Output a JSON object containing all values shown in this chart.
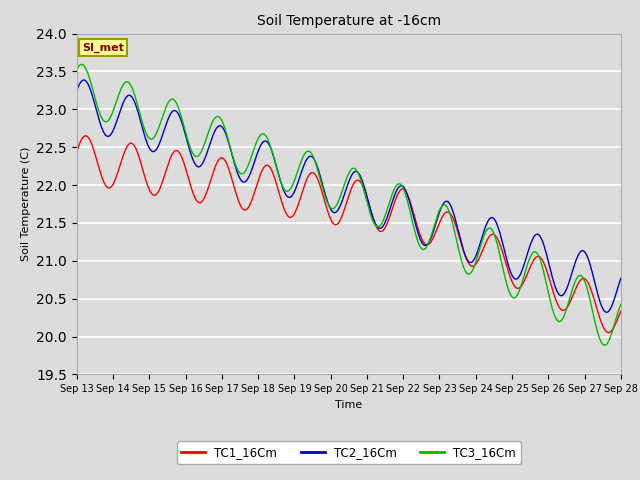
{
  "title": "Soil Temperature at -16cm",
  "xlabel": "Time",
  "ylabel": "Soil Temperature (C)",
  "ylim": [
    19.5,
    24.0
  ],
  "yticks": [
    19.5,
    20.0,
    20.5,
    21.0,
    21.5,
    22.0,
    22.5,
    23.0,
    23.5,
    24.0
  ],
  "xtick_labels": [
    "Sep 13",
    "Sep 14",
    "Sep 15",
    "Sep 16",
    "Sep 17",
    "Sep 18",
    "Sep 19",
    "Sep 20",
    "Sep 21",
    "Sep 22",
    "Sep 23",
    "Sep 24",
    "Sep 25",
    "Sep 26",
    "Sep 27",
    "Sep 28"
  ],
  "line_colors": [
    "#ff0000",
    "#0000cc",
    "#00bb00"
  ],
  "line_labels": [
    "TC1_16Cm",
    "TC2_16Cm",
    "TC3_16Cm"
  ],
  "background_color": "#dcdcdc",
  "plot_bg_color": "#dcdcdc",
  "grid_color": "#ffffff",
  "legend_box_fill": "#ffff99",
  "legend_box_text": "SI_met",
  "legend_box_text_color": "#880000",
  "start_day": 13,
  "end_day": 28,
  "n_points": 1500
}
